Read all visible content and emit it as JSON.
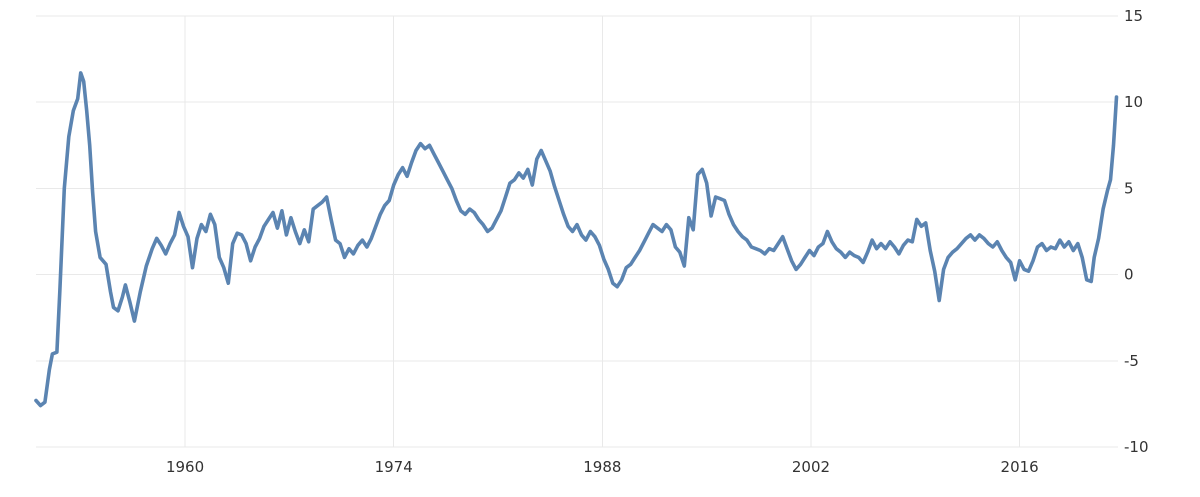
{
  "chart_data": {
    "type": "line",
    "title": "",
    "xlabel": "",
    "ylabel": "",
    "xlim": [
      1950.0,
      2022.6
    ],
    "ylim": [
      -10,
      15
    ],
    "x_ticks": [
      1960,
      1974,
      1988,
      2002,
      2016
    ],
    "y_ticks": [
      15,
      10,
      5,
      0,
      -5,
      -10
    ],
    "grid": true,
    "legend": "none",
    "line_color": "#5b84b1",
    "series": [
      {
        "points": [
          [
            1950.0,
            -7.3
          ],
          [
            1950.3,
            -7.6
          ],
          [
            1950.6,
            -7.4
          ],
          [
            1950.9,
            -5.5
          ],
          [
            1951.1,
            -4.6
          ],
          [
            1951.4,
            -4.5
          ],
          [
            1951.6,
            -1.0
          ],
          [
            1951.9,
            5.0
          ],
          [
            1952.2,
            8.0
          ],
          [
            1952.5,
            9.5
          ],
          [
            1952.8,
            10.2
          ],
          [
            1953.0,
            11.7
          ],
          [
            1953.2,
            11.2
          ],
          [
            1953.4,
            9.5
          ],
          [
            1953.6,
            7.5
          ],
          [
            1953.8,
            4.8
          ],
          [
            1954.0,
            2.5
          ],
          [
            1954.3,
            1.0
          ],
          [
            1954.7,
            0.6
          ],
          [
            1955.0,
            -1.0
          ],
          [
            1955.2,
            -1.9
          ],
          [
            1955.5,
            -2.1
          ],
          [
            1955.8,
            -1.3
          ],
          [
            1956.0,
            -0.6
          ],
          [
            1956.3,
            -1.6
          ],
          [
            1956.6,
            -2.7
          ],
          [
            1957.0,
            -1.0
          ],
          [
            1957.4,
            0.5
          ],
          [
            1957.8,
            1.5
          ],
          [
            1958.1,
            2.1
          ],
          [
            1958.4,
            1.7
          ],
          [
            1958.7,
            1.2
          ],
          [
            1959.0,
            1.8
          ],
          [
            1959.3,
            2.3
          ],
          [
            1959.6,
            3.6
          ],
          [
            1959.9,
            2.8
          ],
          [
            1960.2,
            2.2
          ],
          [
            1960.5,
            0.4
          ],
          [
            1960.8,
            2.1
          ],
          [
            1961.1,
            2.9
          ],
          [
            1961.4,
            2.5
          ],
          [
            1961.7,
            3.5
          ],
          [
            1962.0,
            2.9
          ],
          [
            1962.3,
            1.0
          ],
          [
            1962.6,
            0.4
          ],
          [
            1962.9,
            -0.5
          ],
          [
            1963.2,
            1.8
          ],
          [
            1963.5,
            2.4
          ],
          [
            1963.8,
            2.3
          ],
          [
            1964.1,
            1.8
          ],
          [
            1964.4,
            0.8
          ],
          [
            1964.7,
            1.6
          ],
          [
            1965.0,
            2.1
          ],
          [
            1965.3,
            2.8
          ],
          [
            1965.6,
            3.2
          ],
          [
            1965.9,
            3.6
          ],
          [
            1966.2,
            2.7
          ],
          [
            1966.5,
            3.7
          ],
          [
            1966.8,
            2.3
          ],
          [
            1967.1,
            3.3
          ],
          [
            1967.4,
            2.5
          ],
          [
            1967.7,
            1.8
          ],
          [
            1968.0,
            2.6
          ],
          [
            1968.3,
            1.9
          ],
          [
            1968.6,
            3.8
          ],
          [
            1968.9,
            4.0
          ],
          [
            1969.2,
            4.2
          ],
          [
            1969.5,
            4.5
          ],
          [
            1969.8,
            3.2
          ],
          [
            1970.1,
            2.0
          ],
          [
            1970.4,
            1.8
          ],
          [
            1970.7,
            1.0
          ],
          [
            1971.0,
            1.5
          ],
          [
            1971.3,
            1.2
          ],
          [
            1971.6,
            1.7
          ],
          [
            1971.9,
            2.0
          ],
          [
            1972.2,
            1.6
          ],
          [
            1972.5,
            2.1
          ],
          [
            1972.8,
            2.8
          ],
          [
            1973.1,
            3.5
          ],
          [
            1973.4,
            4.0
          ],
          [
            1973.7,
            4.3
          ],
          [
            1974.0,
            5.2
          ],
          [
            1974.3,
            5.8
          ],
          [
            1974.6,
            6.2
          ],
          [
            1974.9,
            5.7
          ],
          [
            1975.2,
            6.5
          ],
          [
            1975.5,
            7.2
          ],
          [
            1975.8,
            7.6
          ],
          [
            1976.1,
            7.3
          ],
          [
            1976.4,
            7.5
          ],
          [
            1976.7,
            7.0
          ],
          [
            1977.0,
            6.5
          ],
          [
            1977.3,
            6.0
          ],
          [
            1977.6,
            5.5
          ],
          [
            1977.9,
            5.0
          ],
          [
            1978.2,
            4.3
          ],
          [
            1978.5,
            3.7
          ],
          [
            1978.8,
            3.5
          ],
          [
            1979.1,
            3.8
          ],
          [
            1979.4,
            3.6
          ],
          [
            1979.7,
            3.2
          ],
          [
            1980.0,
            2.9
          ],
          [
            1980.3,
            2.5
          ],
          [
            1980.6,
            2.7
          ],
          [
            1980.9,
            3.2
          ],
          [
            1981.2,
            3.7
          ],
          [
            1981.5,
            4.5
          ],
          [
            1981.8,
            5.3
          ],
          [
            1982.1,
            5.5
          ],
          [
            1982.4,
            5.9
          ],
          [
            1982.7,
            5.6
          ],
          [
            1983.0,
            6.1
          ],
          [
            1983.3,
            5.2
          ],
          [
            1983.6,
            6.7
          ],
          [
            1983.9,
            7.2
          ],
          [
            1984.2,
            6.6
          ],
          [
            1984.5,
            6.0
          ],
          [
            1984.8,
            5.1
          ],
          [
            1985.1,
            4.3
          ],
          [
            1985.4,
            3.5
          ],
          [
            1985.7,
            2.8
          ],
          [
            1986.0,
            2.5
          ],
          [
            1986.3,
            2.9
          ],
          [
            1986.6,
            2.3
          ],
          [
            1986.9,
            2.0
          ],
          [
            1987.2,
            2.5
          ],
          [
            1987.5,
            2.2
          ],
          [
            1987.8,
            1.7
          ],
          [
            1988.1,
            0.9
          ],
          [
            1988.4,
            0.3
          ],
          [
            1988.7,
            -0.5
          ],
          [
            1989.0,
            -0.7
          ],
          [
            1989.3,
            -0.3
          ],
          [
            1989.6,
            0.4
          ],
          [
            1989.9,
            0.6
          ],
          [
            1990.2,
            1.0
          ],
          [
            1990.5,
            1.4
          ],
          [
            1990.8,
            1.9
          ],
          [
            1991.1,
            2.4
          ],
          [
            1991.4,
            2.9
          ],
          [
            1991.7,
            2.7
          ],
          [
            1992.0,
            2.5
          ],
          [
            1992.3,
            2.9
          ],
          [
            1992.6,
            2.6
          ],
          [
            1992.9,
            1.6
          ],
          [
            1993.2,
            1.3
          ],
          [
            1993.5,
            0.5
          ],
          [
            1993.8,
            3.3
          ],
          [
            1994.1,
            2.6
          ],
          [
            1994.4,
            5.8
          ],
          [
            1994.7,
            6.1
          ],
          [
            1995.0,
            5.3
          ],
          [
            1995.3,
            3.4
          ],
          [
            1995.6,
            4.5
          ],
          [
            1995.9,
            4.4
          ],
          [
            1996.2,
            4.3
          ],
          [
            1996.5,
            3.5
          ],
          [
            1996.8,
            2.9
          ],
          [
            1997.1,
            2.5
          ],
          [
            1997.4,
            2.2
          ],
          [
            1997.7,
            2.0
          ],
          [
            1998.0,
            1.6
          ],
          [
            1998.3,
            1.5
          ],
          [
            1998.6,
            1.4
          ],
          [
            1998.9,
            1.2
          ],
          [
            1999.2,
            1.5
          ],
          [
            1999.5,
            1.4
          ],
          [
            1999.8,
            1.8
          ],
          [
            2000.1,
            2.2
          ],
          [
            2000.4,
            1.5
          ],
          [
            2000.7,
            0.8
          ],
          [
            2001.0,
            0.3
          ],
          [
            2001.3,
            0.6
          ],
          [
            2001.6,
            1.0
          ],
          [
            2001.9,
            1.4
          ],
          [
            2002.2,
            1.1
          ],
          [
            2002.5,
            1.6
          ],
          [
            2002.8,
            1.8
          ],
          [
            2003.1,
            2.5
          ],
          [
            2003.4,
            1.9
          ],
          [
            2003.7,
            1.5
          ],
          [
            2004.0,
            1.3
          ],
          [
            2004.3,
            1.0
          ],
          [
            2004.6,
            1.3
          ],
          [
            2004.9,
            1.1
          ],
          [
            2005.2,
            1.0
          ],
          [
            2005.5,
            0.7
          ],
          [
            2005.8,
            1.3
          ],
          [
            2006.1,
            2.0
          ],
          [
            2006.4,
            1.5
          ],
          [
            2006.7,
            1.8
          ],
          [
            2007.0,
            1.5
          ],
          [
            2007.3,
            1.9
          ],
          [
            2007.6,
            1.6
          ],
          [
            2007.9,
            1.2
          ],
          [
            2008.2,
            1.7
          ],
          [
            2008.5,
            2.0
          ],
          [
            2008.8,
            1.9
          ],
          [
            2009.1,
            3.2
          ],
          [
            2009.4,
            2.8
          ],
          [
            2009.7,
            3.0
          ],
          [
            2010.0,
            1.4
          ],
          [
            2010.3,
            0.2
          ],
          [
            2010.6,
            -1.5
          ],
          [
            2010.9,
            0.3
          ],
          [
            2011.2,
            1.0
          ],
          [
            2011.5,
            1.3
          ],
          [
            2011.8,
            1.5
          ],
          [
            2012.1,
            1.8
          ],
          [
            2012.4,
            2.1
          ],
          [
            2012.7,
            2.3
          ],
          [
            2013.0,
            2.0
          ],
          [
            2013.3,
            2.3
          ],
          [
            2013.6,
            2.1
          ],
          [
            2013.9,
            1.8
          ],
          [
            2014.2,
            1.6
          ],
          [
            2014.5,
            1.9
          ],
          [
            2014.8,
            1.4
          ],
          [
            2015.1,
            1.0
          ],
          [
            2015.4,
            0.7
          ],
          [
            2015.7,
            -0.3
          ],
          [
            2016.0,
            0.8
          ],
          [
            2016.3,
            0.3
          ],
          [
            2016.6,
            0.2
          ],
          [
            2016.9,
            0.8
          ],
          [
            2017.2,
            1.6
          ],
          [
            2017.5,
            1.8
          ],
          [
            2017.8,
            1.4
          ],
          [
            2018.1,
            1.6
          ],
          [
            2018.4,
            1.5
          ],
          [
            2018.7,
            2.0
          ],
          [
            2019.0,
            1.6
          ],
          [
            2019.3,
            1.9
          ],
          [
            2019.6,
            1.4
          ],
          [
            2019.9,
            1.8
          ],
          [
            2020.2,
            1.0
          ],
          [
            2020.5,
            -0.3
          ],
          [
            2020.8,
            -0.4
          ],
          [
            2021.0,
            1.0
          ],
          [
            2021.3,
            2.1
          ],
          [
            2021.6,
            3.8
          ],
          [
            2021.9,
            4.9
          ],
          [
            2022.1,
            5.5
          ],
          [
            2022.3,
            7.5
          ],
          [
            2022.5,
            10.3
          ]
        ]
      }
    ]
  }
}
